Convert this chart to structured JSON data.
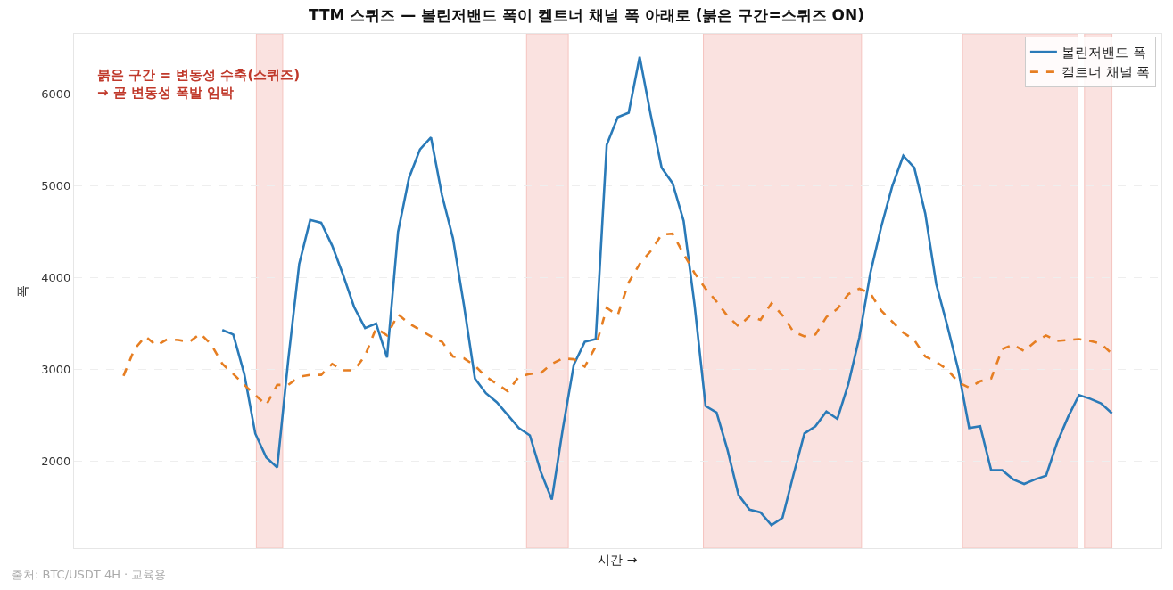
{
  "chart_data": {
    "type": "line",
    "title": "TTM 스퀴즈 — 볼린저밴드 폭이 켈트너 채널 폭 아래로 (붉은 구간=스퀴즈 ON)",
    "xlabel": "시간 →",
    "ylabel": "폭",
    "categories": [
      null,
      null,
      null,
      null,
      null,
      null,
      null,
      null,
      null,
      null,
      null,
      null,
      null,
      null,
      null,
      null,
      null,
      null,
      null,
      null,
      null,
      null,
      null,
      null,
      null,
      null,
      null,
      null,
      null,
      null,
      null,
      null,
      null,
      null,
      null,
      null,
      null,
      null,
      null,
      null,
      null,
      null,
      null,
      null,
      null,
      null,
      null,
      null,
      null,
      null,
      null,
      null,
      null,
      null,
      null,
      null,
      null,
      null,
      null,
      null,
      null,
      null,
      null,
      null,
      null,
      null,
      null,
      null,
      null,
      null,
      null,
      null,
      null,
      null,
      null,
      null,
      null,
      null,
      null,
      null,
      null,
      null,
      null,
      null,
      null,
      null,
      null,
      null,
      null,
      null,
      null
    ],
    "series": [
      {
        "name": "볼린저밴드 폭",
        "color": "#2a7ab8",
        "line_style": "solid",
        "values": [
          null,
          null,
          null,
          null,
          null,
          null,
          null,
          null,
          null,
          3430,
          3380,
          2950,
          2300,
          2040,
          1930,
          3100,
          4150,
          4630,
          4600,
          4350,
          4030,
          3680,
          3450,
          3500,
          3130,
          4500,
          5090,
          5400,
          5530,
          4900,
          4430,
          3700,
          2900,
          2740,
          2640,
          2500,
          2360,
          2280,
          1880,
          1580,
          2350,
          3050,
          3300,
          3330,
          5450,
          5750,
          5800,
          6410,
          5780,
          5200,
          5030,
          4620,
          3700,
          2600,
          2530,
          2120,
          1630,
          1470,
          1440,
          1300,
          1380,
          1850,
          2300,
          2380,
          2540,
          2460,
          2840,
          3350,
          4050,
          4560,
          5000,
          5330,
          5200,
          4700,
          3930,
          3480,
          3000,
          2360,
          2380,
          1900,
          1900,
          1800,
          1750,
          1800,
          1840,
          2200,
          2480,
          2720,
          2680,
          2630,
          2520
        ]
      },
      {
        "name": "켈트너 채널 폭",
        "color": "#e67e22",
        "line_style": "dashed",
        "values": [
          2930,
          3220,
          3360,
          3260,
          3330,
          3320,
          3300,
          3390,
          3270,
          3060,
          2950,
          2830,
          2720,
          2610,
          2830,
          2830,
          2920,
          2940,
          2940,
          3060,
          2990,
          2990,
          3150,
          3450,
          3370,
          3600,
          3500,
          3430,
          3360,
          3300,
          3140,
          3120,
          3040,
          2920,
          2840,
          2760,
          2920,
          2950,
          2960,
          3060,
          3120,
          3110,
          3030,
          3250,
          3670,
          3590,
          3950,
          4150,
          4290,
          4470,
          4480,
          4260,
          4050,
          3880,
          3740,
          3580,
          3470,
          3580,
          3540,
          3720,
          3590,
          3410,
          3360,
          3380,
          3570,
          3660,
          3820,
          3880,
          3830,
          3640,
          3520,
          3400,
          3320,
          3140,
          3080,
          3000,
          2860,
          2800,
          2870,
          2900,
          3220,
          3270,
          3200,
          3300,
          3370,
          3310,
          3320,
          3330,
          3310,
          3280,
          3170
        ]
      }
    ],
    "ylim": [
      1050,
      6660
    ],
    "yticks": [
      2000,
      3000,
      4000,
      5000,
      6000
    ],
    "grid": "y",
    "legend": "top right",
    "tick_labels": "y",
    "marker": "none",
    "annotations": [
      "붉은 구간 = 변동성 수축(스퀴즈)\n→ 곧 변동성 폭발 임박",
      "출처: BTC/USDT 4H · 교육용"
    ]
  }
}
